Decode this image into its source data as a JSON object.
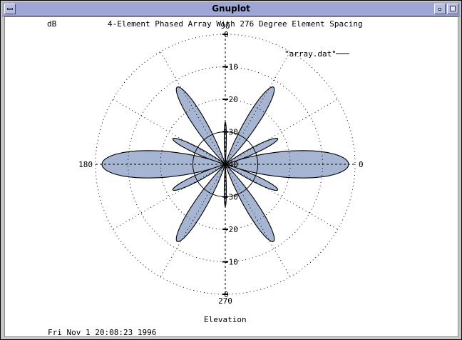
{
  "window": {
    "title": "Gnuplot"
  },
  "plot": {
    "ylabel": "dB",
    "title": "4-Element Phased Array With 276 Degree Element Spacing",
    "xlabel": "Elevation",
    "timestamp": "Fri Nov  1 20:08:23 1996",
    "legend": "\"array.dat\""
  },
  "chart_data": {
    "type": "polar",
    "title": "4-Element Phased Array With 276 Degree Element Spacing",
    "xlabel": "Elevation",
    "ylabel": "dB",
    "series": [
      {
        "name": "\"array.dat\"",
        "color": "#a6b6d2",
        "lobes": [
          {
            "angle_deg": 0,
            "width_deg": 22,
            "peak_db": -2
          },
          {
            "angle_deg": 180,
            "width_deg": 22,
            "peak_db": -2
          },
          {
            "angle_deg": 26,
            "width_deg": 11,
            "peak_db": -22
          },
          {
            "angle_deg": 154,
            "width_deg": 11,
            "peak_db": -22
          },
          {
            "angle_deg": 206,
            "width_deg": 11,
            "peak_db": -22
          },
          {
            "angle_deg": 334,
            "width_deg": 11,
            "peak_db": -22
          },
          {
            "angle_deg": 58,
            "width_deg": 14,
            "peak_db": -12
          },
          {
            "angle_deg": 122,
            "width_deg": 14,
            "peak_db": -12
          },
          {
            "angle_deg": 238,
            "width_deg": 14,
            "peak_db": -12
          },
          {
            "angle_deg": 302,
            "width_deg": 14,
            "peak_db": -12
          },
          {
            "angle_deg": 90,
            "width_deg": 5,
            "peak_db": -27
          },
          {
            "angle_deg": 270,
            "width_deg": 5,
            "peak_db": -27
          }
        ]
      }
    ],
    "radial_axis": {
      "min_db": -40,
      "max_db": 0,
      "ticks_db": [
        0,
        -10,
        -20,
        -30,
        -40
      ]
    },
    "angle_labels": [
      {
        "angle": 0,
        "text": "0"
      },
      {
        "angle": 90,
        "text": "90"
      },
      {
        "angle": 180,
        "text": "180"
      },
      {
        "angle": 270,
        "text": "270"
      }
    ],
    "grid": true,
    "legend_position": "top-right"
  }
}
